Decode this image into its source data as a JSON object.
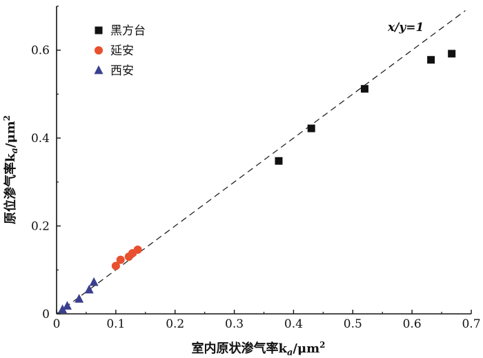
{
  "chart_data": {
    "type": "scatter",
    "xlabel": "室内原状渗气率k",
    "xlabel_sub": "a",
    "xlabel_unit": "/μm",
    "xlabel_sup": "2",
    "ylabel": "原位渗气率k",
    "ylabel_sub": "a",
    "ylabel_unit": "/μm",
    "ylabel_sup": "2",
    "xlim": [
      0,
      0.7
    ],
    "ylim": [
      0,
      0.7
    ],
    "x_ticks": [
      0,
      0.1,
      0.2,
      0.3,
      0.4,
      0.5,
      0.6,
      0.7
    ],
    "x_tick_labels": [
      "0",
      "0.1",
      "0.2",
      "0.3",
      "0.4",
      "0.5",
      "0.6",
      "0.7"
    ],
    "y_ticks": [
      0,
      0.2,
      0.4,
      0.6
    ],
    "y_tick_labels": [
      "0",
      "0.2",
      "0.4",
      "0.6"
    ],
    "grid": false,
    "legend_position": "top-left",
    "reference_line": {
      "label": "x/y=1",
      "slope": 1,
      "color": "#222222"
    },
    "series": [
      {
        "name": "黑方台",
        "marker": "square",
        "color": "#111111",
        "points": [
          {
            "x": 0.375,
            "y": 0.348
          },
          {
            "x": 0.43,
            "y": 0.422
          },
          {
            "x": 0.52,
            "y": 0.512
          },
          {
            "x": 0.632,
            "y": 0.578
          },
          {
            "x": 0.667,
            "y": 0.592
          }
        ]
      },
      {
        "name": "延安",
        "marker": "circle",
        "color": "#e8502f",
        "points": [
          {
            "x": 0.1,
            "y": 0.109
          },
          {
            "x": 0.108,
            "y": 0.123
          },
          {
            "x": 0.122,
            "y": 0.13
          },
          {
            "x": 0.128,
            "y": 0.138
          },
          {
            "x": 0.137,
            "y": 0.146
          }
        ]
      },
      {
        "name": "西安",
        "marker": "triangle",
        "color": "#3a3f8f",
        "points": [
          {
            "x": 0.01,
            "y": 0.01
          },
          {
            "x": 0.018,
            "y": 0.018
          },
          {
            "x": 0.038,
            "y": 0.034
          },
          {
            "x": 0.055,
            "y": 0.055
          },
          {
            "x": 0.063,
            "y": 0.072
          }
        ]
      }
    ]
  }
}
